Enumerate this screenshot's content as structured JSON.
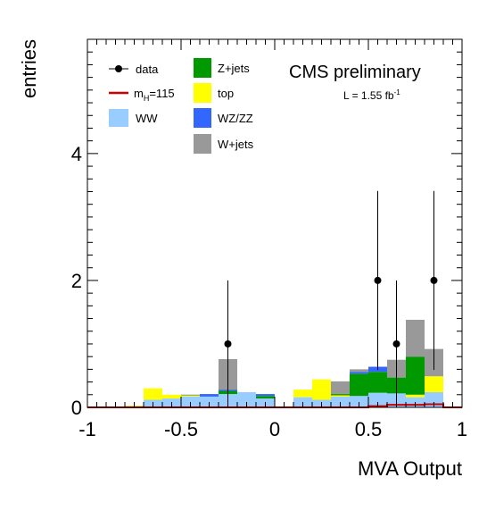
{
  "chart_data": {
    "type": "bar",
    "stacked": true,
    "xlabel": "MVA Output",
    "ylabel": "entries",
    "xlim": [
      -1,
      1
    ],
    "ylim": [
      0,
      5.8
    ],
    "bin_width": 0.1,
    "x_ticks": [
      -1,
      -0.5,
      0,
      0.5,
      1
    ],
    "x_tick_labels": [
      "-1",
      "-0.5",
      "0",
      "0.5",
      "1"
    ],
    "y_ticks": [
      0,
      2,
      4
    ],
    "y_tick_labels": [
      "0",
      "2",
      "4"
    ],
    "bin_lows": [
      -1.0,
      -0.9,
      -0.8,
      -0.7,
      -0.6,
      -0.5,
      -0.4,
      -0.3,
      -0.2,
      -0.1,
      0.0,
      0.1,
      0.2,
      0.3,
      0.4,
      0.5,
      0.6,
      0.7,
      0.8,
      0.9
    ],
    "series": [
      {
        "name": "WW",
        "color": "#99ccff",
        "values": [
          0,
          0,
          0.02,
          0.12,
          0.14,
          0.17,
          0.17,
          0.21,
          0.24,
          0.14,
          0,
          0.16,
          0.12,
          0.17,
          0.18,
          0.23,
          0.22,
          0.16,
          0.24,
          0
        ]
      },
      {
        "name": "top",
        "color": "#ffff00",
        "values": [
          0,
          0,
          0.01,
          0.18,
          0.06,
          0.02,
          0,
          0,
          0,
          0,
          0,
          0.12,
          0.32,
          0.02,
          0,
          0,
          0,
          0.04,
          0.25,
          0
        ]
      },
      {
        "name": "Z+jets",
        "color": "#009900",
        "values": [
          0,
          0,
          0,
          0,
          0,
          0,
          0,
          0.05,
          0,
          0.04,
          0,
          0,
          0,
          0.02,
          0.35,
          0.33,
          0.25,
          0.6,
          0,
          0
        ]
      },
      {
        "name": "WZ/ZZ",
        "color": "#3366ff",
        "values": [
          0,
          0,
          0,
          0,
          0,
          0.01,
          0.04,
          0.02,
          0,
          0.03,
          0,
          0,
          0,
          0,
          0.03,
          0.08,
          0,
          0,
          0,
          0
        ]
      },
      {
        "name": "W+jets",
        "color": "#999999",
        "values": [
          0,
          0,
          0,
          0,
          0,
          0,
          0,
          0.48,
          0,
          0,
          0,
          0,
          0,
          0.2,
          0.04,
          0,
          0.28,
          0.58,
          0.43,
          0
        ]
      }
    ],
    "signal": {
      "name_prefix": "m",
      "name_sub": "H",
      "name_suffix": "=115",
      "color": "#cc0000",
      "values": [
        0,
        0,
        0,
        0,
        0,
        0,
        0,
        0,
        0,
        0,
        0,
        0,
        0,
        0,
        0,
        0.02,
        0.04,
        0.04,
        0.05,
        0
      ]
    },
    "data_points": {
      "name": "data",
      "points": [
        {
          "x": -0.25,
          "y": 1,
          "err": 1
        },
        {
          "x": 0.55,
          "y": 2,
          "err": 1.41
        },
        {
          "x": 0.65,
          "y": 1,
          "err": 1
        },
        {
          "x": 0.85,
          "y": 2,
          "err": 1.41
        }
      ]
    },
    "legend": {
      "col1": [
        {
          "label": "data",
          "kind": "marker"
        },
        {
          "label_prefix": "m",
          "label_sub": "H",
          "label_suffix": "=115",
          "kind": "line",
          "color": "#cc0000"
        },
        {
          "label": "WW",
          "kind": "box",
          "color": "#99ccff"
        }
      ],
      "col2": [
        {
          "label": "Z+jets",
          "kind": "box",
          "color": "#009900"
        },
        {
          "label": "top",
          "kind": "box",
          "color": "#ffff00"
        },
        {
          "label": "WZ/ZZ",
          "kind": "box",
          "color": "#3366ff"
        },
        {
          "label": "W+jets",
          "kind": "box",
          "color": "#999999"
        }
      ]
    },
    "banner": "CMS preliminary",
    "lumi_prefix": "L = 1.55 fb",
    "lumi_sup": "-1"
  }
}
